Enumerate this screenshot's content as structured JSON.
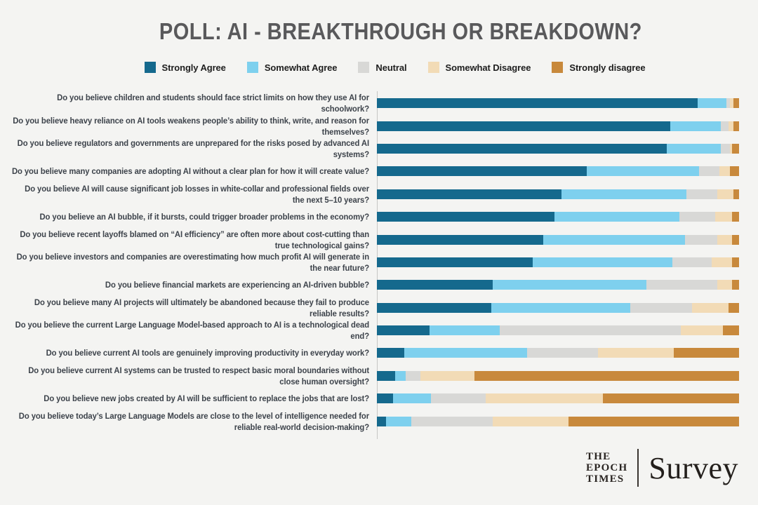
{
  "title": "POLL: AI - BREAKTHROUGH OR BREAKDOWN?",
  "colors": {
    "background": "#f4f4f2",
    "title_text": "#59595b",
    "question_text": "#3d434b",
    "axis_line": "#c6c6c4",
    "strongly_agree": "#15698d",
    "somewhat_agree": "#7ed0ee",
    "neutral": "#d8d8d6",
    "somewhat_disagree": "#f2dbb6",
    "strongly_disagree": "#c8893c"
  },
  "chart_data": {
    "type": "bar",
    "stacked": true,
    "orientation": "horizontal",
    "unit": "percent",
    "xlim": [
      0,
      100
    ],
    "grid": false,
    "legend_position": "top",
    "series_labels": [
      "Strongly Agree",
      "Somewhat Agree",
      "Neutral",
      "Somewhat Disagree",
      "Strongly disagree"
    ],
    "series_colors": [
      "#15698d",
      "#7ed0ee",
      "#d8d8d6",
      "#f2dbb6",
      "#c8893c"
    ],
    "rows": [
      {
        "question": "Do you believe children and students should face strict limits on how they use AI for schoolwork?",
        "values": [
          88.5,
          8,
          1,
          1,
          1.5
        ]
      },
      {
        "question": "Do you believe heavy reliance on AI tools weakens people’s ability to think, write, and reason for themselves?",
        "values": [
          81,
          14,
          2,
          1.5,
          1.5
        ]
      },
      {
        "question": "Do you believe regulators and governments are unprepared for the risks posed by advanced AI systems?",
        "values": [
          80,
          15,
          2.5,
          0.5,
          2
        ]
      },
      {
        "question": "Do you believe many companies are adopting AI without a clear plan for how it will create value?",
        "values": [
          58,
          31,
          5.5,
          3,
          2.5
        ]
      },
      {
        "question": "Do you believe AI will cause significant job losses in white-collar and professional fields over the next 5–10 years?",
        "values": [
          51,
          34.5,
          8.5,
          4.5,
          1.5
        ]
      },
      {
        "question": "Do you believe an AI bubble, if it bursts, could trigger broader problems in the economy?",
        "values": [
          49,
          34.5,
          10,
          4.5,
          2
        ]
      },
      {
        "question": "Do you believe recent layoffs blamed on “AI efficiency” are often more about cost-cutting than true technological gains?",
        "values": [
          46,
          39,
          9,
          4,
          2
        ]
      },
      {
        "question": "Do you believe investors and companies are overestimating how much profit AI will generate in the near future?",
        "values": [
          43,
          38.5,
          11,
          5.5,
          2
        ]
      },
      {
        "question": "Do you believe financial markets are experiencing an AI-driven bubble?",
        "values": [
          32,
          42.5,
          19.5,
          4,
          2
        ]
      },
      {
        "question": "Do you believe many AI projects will ultimately be abandoned because they fail to produce reliable results?",
        "values": [
          31.5,
          38.5,
          17,
          10,
          3
        ]
      },
      {
        "question": "Do you believe the current Large Language Model-based approach to AI is a technological dead end?",
        "values": [
          14.5,
          19.5,
          50,
          11.5,
          4.5
        ]
      },
      {
        "question": "Do you believe current AI tools are genuinely improving productivity in everyday work?",
        "values": [
          7.5,
          34,
          19.5,
          21,
          18
        ]
      },
      {
        "question": "Do you believe current AI systems can be trusted to respect basic moral boundaries without close human oversight?",
        "values": [
          5,
          3,
          4,
          15,
          73
        ]
      },
      {
        "question": "Do you believe new jobs created by AI will be sufficient to replace the jobs that are lost?",
        "values": [
          4.5,
          10.5,
          15,
          32.5,
          37.5
        ]
      },
      {
        "question": "Do you believe today’s Large Language Models are close to the level of intelligence needed for reliable real-world decision-making?",
        "values": [
          2.5,
          7,
          22.5,
          21,
          47
        ]
      }
    ]
  },
  "footer": {
    "brand_lines": [
      "THE",
      "EPOCH",
      "TIMES"
    ],
    "brand_product": "Survey"
  }
}
